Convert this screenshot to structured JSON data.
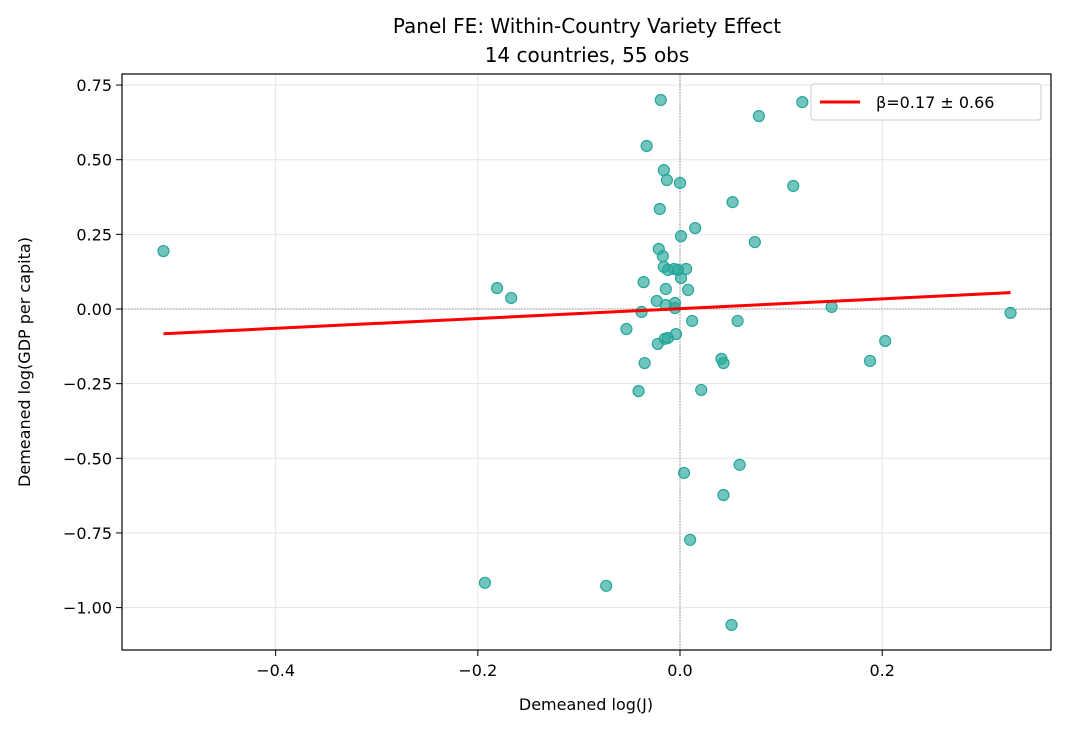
{
  "chart_data": {
    "type": "scatter",
    "title": "Panel FE: Within-Country Variety Effect",
    "subtitle": "14 countries, 55 obs",
    "xlabel": "Demeaned log(J)",
    "ylabel": "Demeaned log(GDP per capita)",
    "xlim": [
      -0.552,
      0.367
    ],
    "ylim": [
      -1.142,
      0.787
    ],
    "xticks": [
      -0.4,
      -0.2,
      0.0,
      0.2
    ],
    "xtick_labels": [
      "−0.4",
      "−0.2",
      "0.0",
      "0.2"
    ],
    "yticks": [
      0.75,
      0.5,
      0.25,
      0.0,
      -0.25,
      -0.5,
      -0.75,
      -1.0
    ],
    "ytick_labels": [
      "0.75",
      "0.50",
      "0.25",
      "0.00",
      "−0.25",
      "−0.50",
      "−0.75",
      "−1.00"
    ],
    "grid": true,
    "legend_position": "top-right",
    "colors": {
      "points": "#26a69a",
      "line": "#ff0000"
    },
    "points": [
      [
        -0.511,
        0.194
      ],
      [
        -0.019,
        0.7
      ],
      [
        0.078,
        0.646
      ],
      [
        0.121,
        0.693
      ],
      [
        -0.033,
        0.546
      ],
      [
        -0.016,
        0.465
      ],
      [
        -0.013,
        0.432
      ],
      [
        0.0,
        0.422
      ],
      [
        0.112,
        0.412
      ],
      [
        -0.02,
        0.335
      ],
      [
        0.052,
        0.358
      ],
      [
        0.015,
        0.271
      ],
      [
        0.001,
        0.244
      ],
      [
        0.074,
        0.224
      ],
      [
        -0.021,
        0.201
      ],
      [
        -0.017,
        0.177
      ],
      [
        -0.016,
        0.141
      ],
      [
        -0.006,
        0.134
      ],
      [
        -0.002,
        0.131
      ],
      [
        0.006,
        0.134
      ],
      [
        -0.012,
        0.131
      ],
      [
        0.001,
        0.104
      ],
      [
        -0.036,
        0.09
      ],
      [
        -0.014,
        0.067
      ],
      [
        0.008,
        0.064
      ],
      [
        -0.181,
        0.07
      ],
      [
        -0.167,
        0.037
      ],
      [
        -0.023,
        0.027
      ],
      [
        -0.014,
        0.013
      ],
      [
        -0.005,
        0.02
      ],
      [
        -0.005,
        0.003
      ],
      [
        -0.038,
        -0.01
      ],
      [
        0.15,
        0.007
      ],
      [
        0.327,
        -0.013
      ],
      [
        0.012,
        -0.04
      ],
      [
        0.057,
        -0.04
      ],
      [
        -0.053,
        -0.067
      ],
      [
        -0.004,
        -0.084
      ],
      [
        -0.012,
        -0.097
      ],
      [
        -0.015,
        -0.1
      ],
      [
        -0.022,
        -0.117
      ],
      [
        0.203,
        -0.107
      ],
      [
        0.041,
        -0.167
      ],
      [
        0.043,
        -0.181
      ],
      [
        -0.035,
        -0.181
      ],
      [
        0.188,
        -0.174
      ],
      [
        0.021,
        -0.271
      ],
      [
        -0.041,
        -0.275
      ],
      [
        0.059,
        -0.522
      ],
      [
        0.004,
        -0.549
      ],
      [
        0.043,
        -0.623
      ],
      [
        0.01,
        -0.773
      ],
      [
        -0.193,
        -0.917
      ],
      [
        -0.073,
        -0.927
      ],
      [
        0.051,
        -1.058
      ]
    ],
    "fit_line": {
      "label": "β=0.17 ± 0.66",
      "x": [
        -0.511,
        0.327
      ],
      "y": [
        -0.083,
        0.055
      ]
    },
    "reference_lines": {
      "x": 0,
      "y": 0
    }
  }
}
